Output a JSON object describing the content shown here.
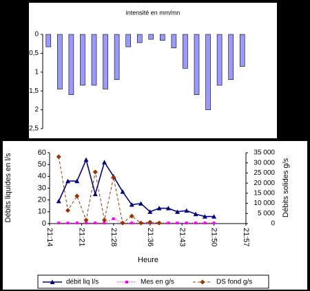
{
  "chart_data": [
    {
      "type": "bar",
      "title": "intensité en mm/mn",
      "color": "#9999ff",
      "y_inverted": true,
      "values": [
        0.33,
        1.45,
        1.6,
        1.35,
        1.35,
        1.45,
        1.2,
        0.33,
        0.22,
        0.13,
        0.16,
        0.36,
        0.9,
        1.6,
        2.0,
        1.35,
        1.2,
        0.85
      ],
      "ylim": [
        0,
        2.5
      ],
      "yticks": [
        0,
        {
          "value": 0.5,
          "label": "0,5"
        },
        1,
        {
          "value": 1.5,
          "label": "1,5"
        },
        2,
        {
          "value": 2.5,
          "label": "2,5"
        }
      ]
    },
    {
      "type": "line",
      "x_label": "Heure",
      "y_label": "Débits liquides en l/s",
      "y2_label": "Débits solides g/s",
      "x": [
        "21:16",
        "21:18",
        "21:20",
        "21:22",
        "21:24",
        "21:26",
        "21:28",
        "21:30",
        "21:32",
        "21:34",
        "21:36",
        "21:38",
        "21:40",
        "21:42",
        "21:44",
        "21:46",
        "21:48",
        "21:50"
      ],
      "xlim": [
        "21:14",
        "21:57"
      ],
      "xticks": [
        "21:14",
        "21:21",
        "21:28",
        "21:36",
        "21:43",
        "21:50",
        "21:57"
      ],
      "ylim": [
        0,
        60
      ],
      "yticks": [
        0,
        10,
        20,
        30,
        40,
        50,
        60
      ],
      "y2lim": [
        0,
        35000
      ],
      "y2ticks": [
        0,
        {
          "value": 5000,
          "label": "5 000"
        },
        {
          "value": 10000,
          "label": "10 000"
        },
        {
          "value": 15000,
          "label": "15 000"
        },
        {
          "value": 20000,
          "label": "20 000"
        },
        {
          "value": 25000,
          "label": "25 000"
        },
        {
          "value": 30000,
          "label": "30 000"
        },
        {
          "value": 35000,
          "label": "35 000"
        }
      ],
      "legend": "bottom",
      "series": [
        {
          "name": "débit liq l/s",
          "color": "#000080",
          "marker": "triangle",
          "dash": "solid",
          "values": [
            19,
            36,
            36,
            54,
            25,
            52,
            40,
            27,
            16,
            17,
            10,
            13,
            13,
            10,
            11,
            8,
            6,
            6
          ]
        },
        {
          "name": "Mes en g/s",
          "color": "#ff00ff",
          "marker": "square",
          "dash": "dotted",
          "axis": "y2",
          "values": [
            300,
            300,
            300,
            300,
            300,
            300,
            2400,
            300,
            300,
            300,
            300,
            300,
            300,
            300,
            300,
            300,
            300,
            300
          ]
        },
        {
          "name": "DS fond g/s",
          "color": "#993300",
          "marker": "diamond",
          "dash": "dashed",
          "axis": "y2",
          "values": [
            33000,
            6500,
            13600,
            1700,
            25500,
            1700,
            22800,
            300,
            3700,
            300,
            700,
            300,
            null,
            null,
            null,
            null,
            null,
            null
          ]
        }
      ]
    }
  ]
}
